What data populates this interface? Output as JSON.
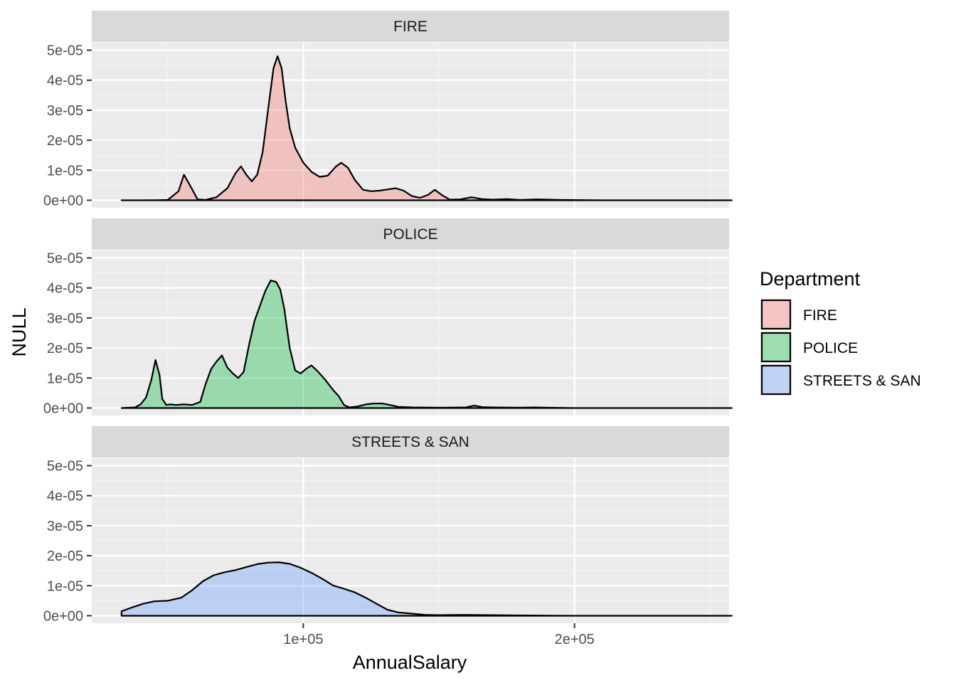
{
  "chart_data": {
    "type": "area",
    "subtype": "density (faceted)",
    "xlabel": "AnnualSalary",
    "ylabel": "NULL",
    "x_ticks": [
      {
        "value": 100000,
        "label": "1e+05"
      },
      {
        "value": 200000,
        "label": "2e+05"
      }
    ],
    "x_minor_ticks": [
      50000,
      150000,
      250000
    ],
    "xlim": [
      22000,
      257000
    ],
    "y_ticks": [
      {
        "value": 0,
        "label": "0e+00"
      },
      {
        "value": 1e-05,
        "label": "1e-05"
      },
      {
        "value": 2e-05,
        "label": "2e-05"
      },
      {
        "value": 3e-05,
        "label": "3e-05"
      },
      {
        "value": 4e-05,
        "label": "4e-05"
      },
      {
        "value": 5e-05,
        "label": "5e-05"
      }
    ],
    "ylim": [
      -2.5e-06,
      5.25e-05
    ],
    "grid": true,
    "legend": {
      "title": "Department",
      "position": "right"
    },
    "series": [
      {
        "name": "FIRE",
        "color": "#F8766D",
        "x": [
          33000,
          40000,
          46000,
          50000,
          54000,
          56000,
          58500,
          61000,
          64000,
          68000,
          72000,
          75000,
          77000,
          79000,
          81000,
          83000,
          85000,
          87000,
          89000,
          90500,
          92000,
          93500,
          95000,
          97000,
          100000,
          103000,
          106000,
          109000,
          112000,
          114000,
          116500,
          119000,
          122000,
          125000,
          128000,
          131000,
          134000,
          137000,
          140000,
          143000,
          146000,
          148500,
          151000,
          154000,
          158000,
          162000,
          166000,
          170000,
          175000,
          180000,
          186000,
          195000,
          210000,
          230000,
          258000
        ],
        "y": [
          0,
          0,
          3e-08,
          1e-07,
          3e-06,
          8.5e-06,
          4.5e-06,
          3e-07,
          1e-07,
          1e-06,
          4e-06,
          9e-06,
          1.13e-05,
          8.5e-06,
          6.3e-06,
          8.5e-06,
          1.6e-05,
          3e-05,
          4.4e-05,
          4.8e-05,
          4.4e-05,
          3.3e-05,
          2.4e-05,
          1.75e-05,
          1.25e-05,
          9.5e-06,
          7.8e-06,
          8.2e-06,
          1.12e-05,
          1.25e-05,
          1.08e-05,
          6.8e-06,
          3.5e-06,
          3e-06,
          3.2e-06,
          3.6e-06,
          4e-06,
          3.2e-06,
          1.4e-06,
          8e-07,
          1.8e-06,
          3.5e-06,
          1.8e-06,
          2e-07,
          3e-07,
          1e-06,
          4e-07,
          2e-07,
          4e-07,
          1e-07,
          3e-07,
          1e-07,
          0,
          0,
          0
        ]
      },
      {
        "name": "POLICE",
        "color": "#00BA38",
        "x": [
          33000,
          38000,
          40000,
          42000,
          44000,
          45500,
          47000,
          48000,
          49500,
          51000,
          53000,
          56000,
          59000,
          62000,
          64000,
          66000,
          68000,
          70000,
          72000,
          74000,
          76000,
          78000,
          80000,
          82000,
          84000,
          86000,
          88000,
          90000,
          91500,
          93000,
          95000,
          97000,
          99000,
          101000,
          103000,
          105000,
          108000,
          111000,
          113000,
          115000,
          117000,
          120000,
          123000,
          126000,
          129000,
          132000,
          135000,
          140000,
          150000,
          160000,
          163000,
          166000,
          170000,
          180000,
          185000,
          190000,
          200000,
          230000,
          258000
        ],
        "y": [
          0,
          2e-07,
          1.2e-06,
          3.5e-06,
          9.5e-06,
          1.6e-05,
          1.1e-05,
          3e-06,
          1e-06,
          1.2e-06,
          1e-06,
          1.2e-06,
          1e-06,
          2e-06,
          8e-06,
          1.3e-05,
          1.55e-05,
          1.75e-05,
          1.35e-05,
          1.15e-05,
          1e-05,
          1.2e-05,
          2.1e-05,
          2.9e-05,
          3.4e-05,
          3.9e-05,
          4.25e-05,
          4.2e-05,
          3.95e-05,
          3.3e-05,
          2e-05,
          1.25e-05,
          1.15e-05,
          1.3e-05,
          1.42e-05,
          1.25e-05,
          9.5e-06,
          6e-06,
          4e-06,
          1e-06,
          2e-07,
          5e-07,
          1.2e-06,
          1.5e-06,
          1.5e-06,
          1e-06,
          4e-07,
          2e-07,
          1e-07,
          2e-07,
          8e-07,
          3e-07,
          2e-07,
          1e-07,
          2e-07,
          1e-07,
          0,
          0,
          0
        ]
      },
      {
        "name": "STREETS & SAN",
        "color": "#619CFF",
        "x": [
          33000,
          37000,
          41000,
          45000,
          50000,
          55000,
          59000,
          63000,
          67000,
          71000,
          75000,
          79000,
          83000,
          87000,
          91000,
          95000,
          99000,
          103000,
          107000,
          111000,
          115000,
          119000,
          123000,
          127000,
          131000,
          135000,
          140000,
          145000,
          150000,
          160000,
          170000,
          180000,
          200000,
          230000,
          258000
        ],
        "y": [
          1.5e-06,
          2.8e-06,
          4e-06,
          4.8e-06,
          5e-06,
          6e-06,
          8.5e-06,
          1.15e-05,
          1.35e-05,
          1.45e-05,
          1.52e-05,
          1.62e-05,
          1.72e-05,
          1.77e-05,
          1.78e-05,
          1.73e-05,
          1.6e-05,
          1.43e-05,
          1.23e-05,
          1.01e-05,
          9e-06,
          7.8e-06,
          6e-06,
          4e-06,
          2e-06,
          1.1e-06,
          7e-07,
          3e-07,
          2e-07,
          3e-07,
          2e-07,
          1e-07,
          0,
          0,
          0
        ]
      }
    ]
  }
}
